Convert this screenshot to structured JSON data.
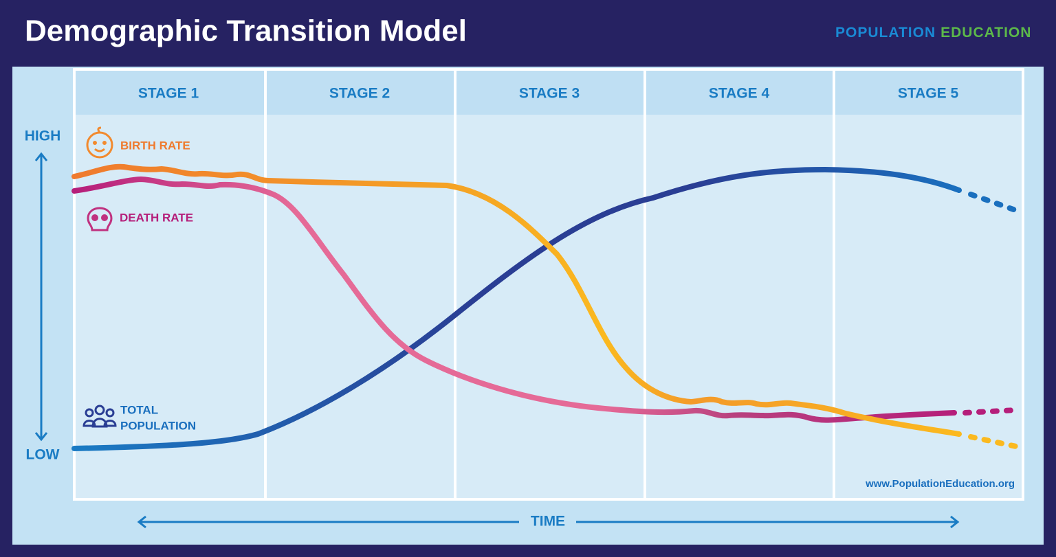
{
  "header": {
    "title": "Demographic Transition Model",
    "logo": [
      "POPULATION",
      "EDUCATION"
    ]
  },
  "stages": [
    "STAGE 1",
    "STAGE 2",
    "STAGE 3",
    "STAGE 4",
    "STAGE 5"
  ],
  "axis": {
    "high": "HIGH",
    "low": "LOW",
    "time": "TIME"
  },
  "legend": {
    "birth_rate": "BIRTH RATE",
    "death_rate": "DEATH RATE",
    "total_population": [
      "TOTAL",
      "POPULATION"
    ]
  },
  "footer": {
    "url": "www.PopulationEducation.org"
  }
}
